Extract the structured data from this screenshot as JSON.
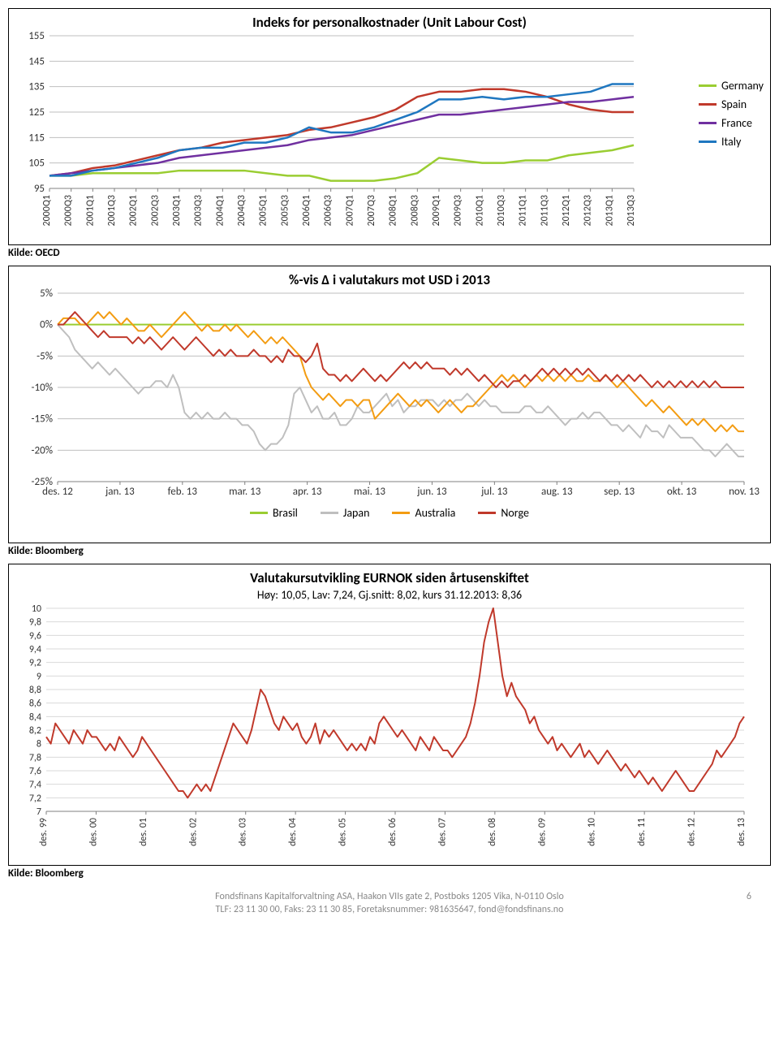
{
  "chart1": {
    "type": "line",
    "title": "Indeks for personalkostnader (Unit Labour Cost)",
    "ylim": [
      95,
      155
    ],
    "ytick_step": 10,
    "x_labels": [
      "2000Q1",
      "2000Q3",
      "2001Q1",
      "2001Q3",
      "2002Q1",
      "2002Q3",
      "2003Q1",
      "2003Q3",
      "2004Q1",
      "2004Q3",
      "2005Q1",
      "2005Q3",
      "2006Q1",
      "2006Q3",
      "2007Q1",
      "2007Q3",
      "2008Q1",
      "2008Q3",
      "2009Q1",
      "2009Q3",
      "2010Q1",
      "2010Q3",
      "2011Q1",
      "2011Q3",
      "2012Q1",
      "2012Q3",
      "2013Q1",
      "2013Q3"
    ],
    "grid_color": "#bfbfbf",
    "axis_color": "#808080",
    "background_color": "#ffffff",
    "series": [
      {
        "name": "Germany",
        "color": "#9acd32",
        "values": [
          100,
          100,
          101,
          101,
          101,
          101,
          102,
          102,
          102,
          102,
          101,
          100,
          100,
          98,
          98,
          98,
          99,
          101,
          107,
          106,
          105,
          105,
          106,
          106,
          108,
          109,
          110,
          112
        ]
      },
      {
        "name": "Spain",
        "color": "#c0392b",
        "values": [
          100,
          101,
          103,
          104,
          106,
          108,
          110,
          111,
          113,
          114,
          115,
          116,
          118,
          119,
          121,
          123,
          126,
          131,
          133,
          133,
          134,
          134,
          133,
          131,
          128,
          126,
          125,
          125
        ]
      },
      {
        "name": "France",
        "color": "#7030a0",
        "values": [
          100,
          101,
          102,
          103,
          104,
          105,
          107,
          108,
          109,
          110,
          111,
          112,
          114,
          115,
          116,
          118,
          120,
          122,
          124,
          124,
          125,
          126,
          127,
          128,
          129,
          129,
          130,
          131
        ]
      },
      {
        "name": "Italy",
        "color": "#1f77c0",
        "values": [
          100,
          100,
          102,
          103,
          105,
          107,
          110,
          111,
          111,
          113,
          113,
          115,
          119,
          117,
          117,
          119,
          122,
          125,
          130,
          130,
          131,
          130,
          131,
          131,
          132,
          133,
          136,
          136
        ]
      }
    ],
    "source": "Kilde: OECD",
    "label_fontsize": 13
  },
  "chart2": {
    "type": "line",
    "title": "%-vis Δ i valutakurs mot USD i 2013",
    "ylim": [
      -25,
      5
    ],
    "ytick_step": 5,
    "x_labels": [
      "des. 12",
      "jan. 13",
      "feb. 13",
      "mar. 13",
      "apr. 13",
      "mai. 13",
      "jun. 13",
      "jul. 13",
      "aug. 13",
      "sep. 13",
      "okt. 13",
      "nov. 13"
    ],
    "grid_color": "#bfbfbf",
    "axis_color": "#808080",
    "background_color": "#ffffff",
    "series": [
      {
        "name": "Brasil",
        "color": "#9acd32",
        "values": [
          0,
          0,
          0,
          0,
          0,
          0,
          0,
          0,
          0,
          0,
          0,
          0,
          0,
          0,
          0,
          0,
          0,
          0,
          0,
          0,
          0,
          0,
          0,
          0,
          0,
          0,
          0,
          0,
          0,
          0,
          0,
          0,
          0,
          0,
          0,
          0,
          0,
          0,
          0,
          0,
          0,
          0,
          0,
          0,
          0,
          0,
          0,
          0,
          0,
          0,
          0,
          0,
          0,
          0,
          0,
          0,
          0,
          0,
          0,
          0,
          0,
          0,
          0,
          0,
          0,
          0,
          0,
          0,
          0,
          0,
          0,
          0,
          0,
          0,
          0,
          0,
          0,
          0,
          0,
          0,
          0,
          0,
          0,
          0,
          0,
          0,
          0,
          0,
          0,
          0,
          0,
          0,
          0,
          0,
          0,
          0,
          0,
          0,
          0,
          0,
          0,
          0,
          0,
          0,
          0,
          0,
          0,
          0,
          0,
          0,
          0,
          0,
          0,
          0,
          0,
          0,
          0,
          0,
          0,
          0
        ]
      },
      {
        "name": "Japan",
        "color": "#bfbfbf",
        "values": [
          0,
          -1,
          -2,
          -4,
          -5,
          -6,
          -7,
          -6,
          -7,
          -8,
          -7,
          -8,
          -9,
          -10,
          -11,
          -10,
          -10,
          -9,
          -9,
          -10,
          -8,
          -10,
          -14,
          -15,
          -14,
          -15,
          -14,
          -15,
          -15,
          -14,
          -15,
          -15,
          -16,
          -16,
          -17,
          -19,
          -20,
          -19,
          -19,
          -18,
          -16,
          -11,
          -10,
          -12,
          -14,
          -13,
          -15,
          -15,
          -14,
          -16,
          -16,
          -15,
          -13,
          -14,
          -14,
          -13,
          -12,
          -11,
          -13,
          -12,
          -14,
          -13,
          -13,
          -12,
          -12,
          -12,
          -13,
          -12,
          -13,
          -12,
          -12,
          -11,
          -12,
          -13,
          -12,
          -13,
          -13,
          -14,
          -14,
          -14,
          -14,
          -13,
          -13,
          -14,
          -14,
          -13,
          -14,
          -15,
          -16,
          -15,
          -15,
          -14,
          -15,
          -14,
          -14,
          -15,
          -16,
          -16,
          -17,
          -16,
          -17,
          -18,
          -16,
          -17,
          -17,
          -18,
          -16,
          -17,
          -18,
          -18,
          -18,
          -19,
          -20,
          -20,
          -21,
          -20,
          -19,
          -20,
          -21,
          -21
        ]
      },
      {
        "name": "Australia",
        "color": "#f39c12",
        "values": [
          0,
          1,
          1,
          1,
          0,
          0,
          1,
          2,
          1,
          2,
          1,
          0,
          1,
          0,
          -1,
          -1,
          0,
          -1,
          -2,
          -1,
          0,
          1,
          2,
          1,
          0,
          -1,
          0,
          -1,
          -1,
          0,
          -1,
          0,
          -1,
          -2,
          -1,
          -2,
          -3,
          -2,
          -3,
          -2,
          -3,
          -4,
          -5,
          -8,
          -10,
          -11,
          -12,
          -11,
          -12,
          -13,
          -12,
          -12,
          -13,
          -12,
          -12,
          -15,
          -14,
          -13,
          -12,
          -11,
          -12,
          -13,
          -12,
          -13,
          -12,
          -13,
          -14,
          -13,
          -12,
          -13,
          -14,
          -13,
          -13,
          -12,
          -11,
          -10,
          -9,
          -8,
          -9,
          -8,
          -9,
          -10,
          -9,
          -8,
          -9,
          -8,
          -9,
          -8,
          -9,
          -8,
          -9,
          -9,
          -8,
          -9,
          -9,
          -8,
          -9,
          -10,
          -9,
          -10,
          -11,
          -12,
          -13,
          -12,
          -13,
          -14,
          -13,
          -14,
          -15,
          -16,
          -15,
          -16,
          -15,
          -16,
          -17,
          -16,
          -17,
          -16,
          -17,
          -17
        ]
      },
      {
        "name": "Norge",
        "color": "#c0392b",
        "values": [
          0,
          0,
          1,
          2,
          1,
          0,
          -1,
          -2,
          -1,
          -2,
          -2,
          -2,
          -2,
          -3,
          -2,
          -3,
          -2,
          -3,
          -4,
          -3,
          -2,
          -3,
          -4,
          -3,
          -2,
          -3,
          -4,
          -5,
          -4,
          -5,
          -4,
          -5,
          -5,
          -5,
          -4,
          -5,
          -5,
          -6,
          -5,
          -6,
          -4,
          -5,
          -5,
          -6,
          -5,
          -3,
          -7,
          -8,
          -8,
          -9,
          -8,
          -9,
          -8,
          -7,
          -8,
          -9,
          -8,
          -9,
          -8,
          -7,
          -6,
          -7,
          -6,
          -7,
          -6,
          -7,
          -7,
          -7,
          -8,
          -7,
          -8,
          -7,
          -8,
          -9,
          -8,
          -9,
          -10,
          -9,
          -10,
          -9,
          -9,
          -8,
          -9,
          -8,
          -7,
          -8,
          -7,
          -8,
          -7,
          -8,
          -7,
          -8,
          -7,
          -8,
          -9,
          -8,
          -9,
          -8,
          -9,
          -8,
          -9,
          -8,
          -9,
          -10,
          -9,
          -10,
          -9,
          -10,
          -9,
          -10,
          -9,
          -10,
          -9,
          -10,
          -9,
          -10,
          -10,
          -10,
          -10,
          -10
        ]
      }
    ],
    "source": "Kilde: Bloomberg"
  },
  "chart3": {
    "type": "line",
    "title": "Valutakursutvikling EURNOK siden årtusenskiftet",
    "subtitle": "Høy: 10,05, Lav: 7,24, Gj.snitt: 8,02, kurs 31.12.2013: 8,36",
    "ylim": [
      7,
      10
    ],
    "ytick_step": 0.2,
    "x_labels": [
      "des. 99",
      "des. 00",
      "des. 01",
      "des. 02",
      "des. 03",
      "des. 04",
      "des. 05",
      "des. 06",
      "des. 07",
      "des. 08",
      "des. 09",
      "des. 10",
      "des. 11",
      "des. 12",
      "des. 13"
    ],
    "grid_color": "#d9d9d9",
    "axis_color": "#808080",
    "background_color": "#ffffff",
    "series": [
      {
        "name": "EURNOK",
        "color": "#c0392b",
        "values": [
          8.1,
          8.0,
          8.3,
          8.2,
          8.1,
          8.0,
          8.2,
          8.1,
          8.0,
          8.2,
          8.1,
          8.1,
          8.0,
          7.9,
          8.0,
          7.9,
          8.1,
          8.0,
          7.9,
          7.8,
          7.9,
          8.1,
          8.0,
          7.9,
          7.8,
          7.7,
          7.6,
          7.5,
          7.4,
          7.3,
          7.3,
          7.2,
          7.3,
          7.4,
          7.3,
          7.4,
          7.3,
          7.5,
          7.7,
          7.9,
          8.1,
          8.3,
          8.2,
          8.1,
          8.0,
          8.2,
          8.5,
          8.8,
          8.7,
          8.5,
          8.3,
          8.2,
          8.4,
          8.3,
          8.2,
          8.3,
          8.1,
          8.0,
          8.1,
          8.3,
          8.0,
          8.2,
          8.1,
          8.2,
          8.1,
          8.0,
          7.9,
          8.0,
          7.9,
          8.0,
          7.9,
          8.1,
          8.0,
          8.3,
          8.4,
          8.3,
          8.2,
          8.1,
          8.2,
          8.1,
          8.0,
          7.9,
          8.1,
          8.0,
          7.9,
          8.1,
          8.0,
          7.9,
          7.9,
          7.8,
          7.9,
          8.0,
          8.1,
          8.3,
          8.6,
          9.0,
          9.5,
          9.8,
          10.0,
          9.5,
          9.0,
          8.7,
          8.9,
          8.7,
          8.6,
          8.5,
          8.3,
          8.4,
          8.2,
          8.1,
          8.0,
          8.1,
          7.9,
          8.0,
          7.9,
          7.8,
          7.9,
          8.0,
          7.8,
          7.9,
          7.8,
          7.7,
          7.8,
          7.9,
          7.8,
          7.7,
          7.6,
          7.7,
          7.6,
          7.5,
          7.6,
          7.5,
          7.4,
          7.5,
          7.4,
          7.3,
          7.4,
          7.5,
          7.6,
          7.5,
          7.4,
          7.3,
          7.3,
          7.4,
          7.5,
          7.6,
          7.7,
          7.9,
          7.8,
          7.9,
          8.0,
          8.1,
          8.3,
          8.4
        ]
      }
    ],
    "source": "Kilde: Bloomberg"
  },
  "footer": {
    "line1": "Fondsfinans Kapitalforvaltning ASA, Haakon VIIs gate 2, Postboks 1205 Vika, N-0110 Oslo",
    "line2": "TLF: 23 11 30 00, Faks: 23 11 30 85, Foretaksnummer: 981635647, fond@fondsfinans.no",
    "page": "6"
  }
}
